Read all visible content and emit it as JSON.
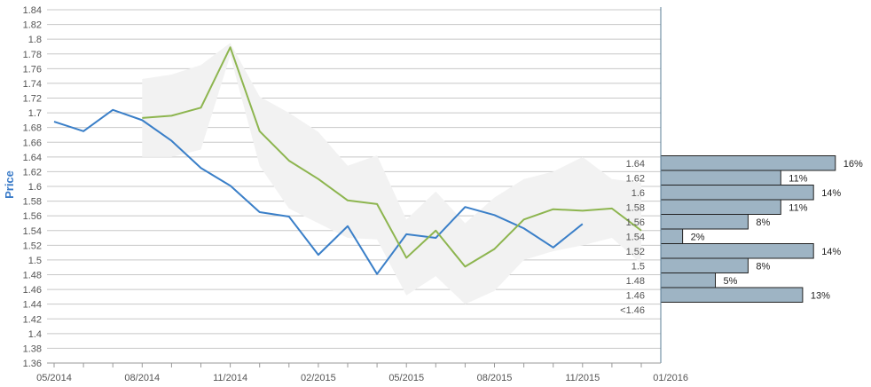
{
  "chart_data": {
    "type": "line",
    "ylabel": "Price",
    "ylim": [
      1.36,
      1.84
    ],
    "y_ticks": [
      "1.36",
      "1.38",
      "1.4",
      "1.42",
      "1.44",
      "1.46",
      "1.48",
      "1.5",
      "1.52",
      "1.54",
      "1.56",
      "1.58",
      "1.6",
      "1.62",
      "1.64",
      "1.66",
      "1.68",
      "1.7",
      "1.72",
      "1.74",
      "1.76",
      "1.78",
      "1.8",
      "1.82",
      "1.84"
    ],
    "x_tick_labels": [
      "05/2014",
      "08/2014",
      "11/2014",
      "02/2015",
      "05/2015",
      "08/2015",
      "11/2015",
      "01/2016"
    ],
    "grid": true,
    "series": [
      {
        "color": "#3a7fc8",
        "x": [
          "2014-05",
          "2014-06",
          "2014-07",
          "2014-08",
          "2014-09",
          "2014-10",
          "2014-11",
          "2014-12",
          "2015-01",
          "2015-02",
          "2015-03",
          "2015-04",
          "2015-05",
          "2015-06",
          "2015-07",
          "2015-08",
          "2015-09",
          "2015-10",
          "2015-11"
        ],
        "y": [
          1.688,
          1.675,
          1.704,
          1.69,
          1.662,
          1.625,
          1.601,
          1.565,
          1.559,
          1.507,
          1.546,
          1.481,
          1.535,
          1.53,
          1.572,
          1.561,
          1.543,
          1.517,
          1.549
        ]
      },
      {
        "color": "#8db54f",
        "x": [
          "2014-08",
          "2014-09",
          "2014-10",
          "2014-11",
          "2014-12",
          "2015-01",
          "2015-02",
          "2015-03",
          "2015-04",
          "2015-05",
          "2015-06",
          "2015-07",
          "2015-08",
          "2015-09",
          "2015-10",
          "2015-11",
          "2015-12",
          "2016-01"
        ],
        "y": [
          1.693,
          1.696,
          1.707,
          1.789,
          1.675,
          1.635,
          1.61,
          1.581,
          1.576,
          1.503,
          1.54,
          1.491,
          1.515,
          1.555,
          1.569,
          1.567,
          1.57,
          1.54
        ]
      }
    ],
    "band": {
      "color": "#f2f2f2",
      "x": [
        "2014-08",
        "2014-09",
        "2014-10",
        "2014-11",
        "2014-12",
        "2015-01",
        "2015-02",
        "2015-03",
        "2015-04",
        "2015-05",
        "2015-06",
        "2015-07",
        "2015-08",
        "2015-09",
        "2015-10",
        "2015-11",
        "2015-12",
        "2016-01"
      ],
      "upper": [
        1.746,
        1.752,
        1.765,
        1.795,
        1.722,
        1.7,
        1.674,
        1.628,
        1.642,
        1.555,
        1.593,
        1.55,
        1.585,
        1.61,
        1.62,
        1.64,
        1.61,
        1.605
      ],
      "lower": [
        1.64,
        1.64,
        1.65,
        1.778,
        1.628,
        1.57,
        1.55,
        1.53,
        1.528,
        1.452,
        1.478,
        1.44,
        1.458,
        1.5,
        1.512,
        1.52,
        1.53,
        1.495
      ]
    },
    "histogram": {
      "color": "#9eb4c4",
      "bins": [
        {
          "label": "1.64",
          "pct": "16%",
          "value": 16
        },
        {
          "label": "1.62",
          "pct": "11%",
          "value": 11
        },
        {
          "label": "1.6",
          "pct": "14%",
          "value": 14
        },
        {
          "label": "1.58",
          "pct": "11%",
          "value": 11
        },
        {
          "label": "1.56",
          "pct": "8%",
          "value": 8
        },
        {
          "label": "1.54",
          "pct": "2%",
          "value": 2
        },
        {
          "label": "1.52",
          "pct": "14%",
          "value": 14
        },
        {
          "label": "1.5",
          "pct": "8%",
          "value": 8
        },
        {
          "label": "1.48",
          "pct": "5%",
          "value": 5
        },
        {
          "label": "1.46",
          "pct": "13%",
          "value": 13
        },
        {
          "label": "<1.46",
          "pct": "",
          "value": 0
        }
      ]
    }
  }
}
